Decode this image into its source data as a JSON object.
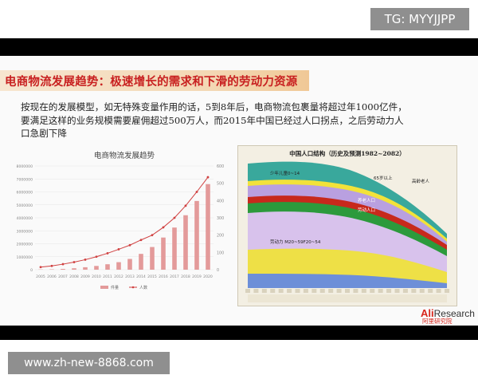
{
  "overlay": {
    "top_badge": "TG: MYYJJPP",
    "bottom_badge": "www.zh-new-8868.com"
  },
  "slide": {
    "title": "电商物流发展趋势：极速增长的需求和下滑的劳动力资源",
    "paragraph": [
      "按现在的发展模型，如无特殊变量作用的话，5到8年后，电商物流包裹量将超过年1000亿件，",
      "要满足这样的业务规模需要雇佣超过500万人，而2015年中国已经过人口拐点，之后劳动力人",
      "口急剧下降"
    ],
    "logo": {
      "brand_a": "Ali",
      "brand_b": "Research",
      "brand_cn": "阿里研究院"
    }
  },
  "chart_data": [
    {
      "type": "bar",
      "title": "电商物流发展趋势",
      "categories": [
        "2005",
        "2006",
        "2007",
        "2008",
        "2009",
        "2010",
        "2011",
        "2012",
        "2013",
        "2014",
        "2015",
        "2016",
        "2017",
        "2018",
        "2019",
        "2020"
      ],
      "series": [
        {
          "name": "件量",
          "type": "bar",
          "axis": "left",
          "values": [
            20000,
            30000,
            60000,
            110000,
            190000,
            290000,
            420000,
            580000,
            830000,
            1220000,
            1750000,
            2480000,
            3250000,
            4200000,
            5300000,
            6600000
          ]
        },
        {
          "name": "人数",
          "type": "line",
          "axis": "right",
          "values": [
            15,
            22,
            32,
            44,
            58,
            75,
            95,
            118,
            142,
            172,
            200,
            245,
            300,
            370,
            450,
            535
          ]
        }
      ],
      "left_axis": {
        "ylim": [
          0,
          8000000
        ],
        "ticks": [
          "0",
          "1000000",
          "2000000",
          "3000000",
          "4000000",
          "5000000",
          "6000000",
          "7000000",
          "8000000"
        ]
      },
      "right_axis": {
        "ylim": [
          0,
          600
        ],
        "ticks": [
          "0",
          "100",
          "200",
          "300",
          "400",
          "500",
          "600"
        ]
      },
      "colors": {
        "bar": "#e39a9a",
        "line": "#d04040"
      },
      "legend": "bottom-center"
    },
    {
      "type": "area",
      "title": "中国人口结构（历史及预测1982~2082）",
      "labels": [
        "少年儿童0~14",
        "65岁以上",
        "高龄老人",
        "养老人口",
        "劳动人口",
        "劳动力 M20~59F20~54"
      ],
      "colors": {
        "background": "#f3efe3",
        "teal": "#39a89c",
        "yellow": "#f2e23a",
        "purple": "#c9b6e6",
        "red": "#c7291c",
        "green": "#2c9a3c",
        "lilac": "#d8c2ec"
      }
    }
  ]
}
